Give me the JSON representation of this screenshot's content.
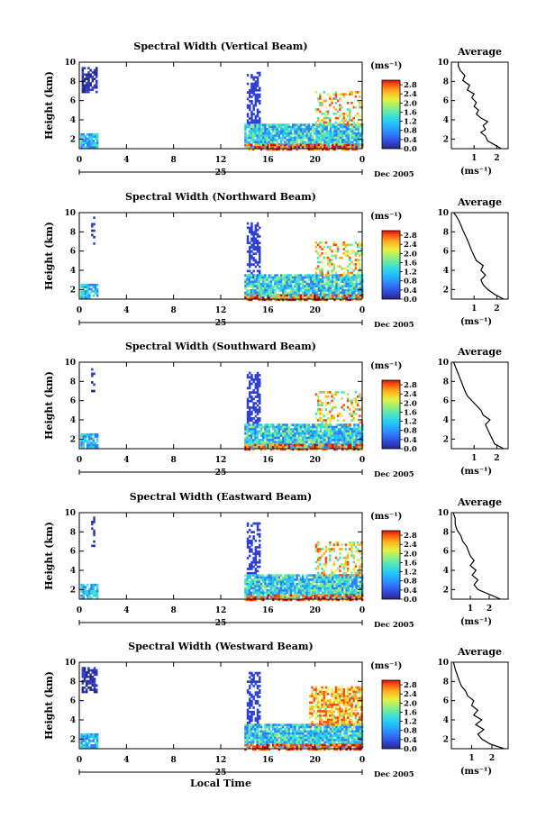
{
  "chart_data": [
    {
      "type": "heatmap",
      "title": "Spectral Width (Vertical Beam)",
      "ylabel": "Height (km)",
      "xlim": [
        0,
        24
      ],
      "ylim": [
        1,
        10
      ],
      "x_ticks": [
        "0",
        "4",
        "8",
        "12",
        "16",
        "20",
        "0"
      ],
      "y_ticks": [
        "2",
        "4",
        "6",
        "8",
        "10"
      ],
      "day_label": "25",
      "date_label": "Dec 2005",
      "colorbar": {
        "unit": "(ms⁻¹)",
        "ticks": [
          "0.0",
          "0.4",
          "0.8",
          "1.2",
          "1.6",
          "2.0",
          "2.4",
          "2.8"
        ],
        "range": [
          0,
          3.0
        ]
      },
      "average": {
        "title": "Average",
        "unit": "(ms⁻¹)",
        "x_ticks": [
          "1",
          "2"
        ],
        "y_ticks": [
          "2",
          "4",
          "6",
          "8",
          "10"
        ],
        "xlim": [
          0,
          2.5
        ],
        "profile": [
          [
            2.2,
            1.0
          ],
          [
            1.9,
            1.4
          ],
          [
            1.6,
            1.8
          ],
          [
            1.5,
            2.3
          ],
          [
            1.3,
            2.7
          ],
          [
            1.5,
            3.0
          ],
          [
            1.4,
            3.4
          ],
          [
            1.6,
            3.8
          ],
          [
            1.3,
            4.2
          ],
          [
            1.1,
            4.6
          ],
          [
            1.2,
            5.0
          ],
          [
            1.0,
            5.4
          ],
          [
            1.1,
            5.8
          ],
          [
            0.9,
            6.3
          ],
          [
            1.0,
            6.7
          ],
          [
            0.7,
            7.1
          ],
          [
            0.8,
            7.6
          ],
          [
            0.5,
            8.1
          ],
          [
            0.6,
            8.6
          ],
          [
            0.4,
            9.1
          ],
          [
            0.3,
            9.6
          ],
          [
            0.3,
            10.0
          ]
        ]
      }
    },
    {
      "type": "heatmap",
      "title": "Spectral Width (Northward Beam)",
      "ylabel": "Height (km)",
      "xlim": [
        0,
        24
      ],
      "ylim": [
        1,
        10
      ],
      "x_ticks": [
        "0",
        "4",
        "8",
        "12",
        "16",
        "20",
        "0"
      ],
      "y_ticks": [
        "2",
        "4",
        "6",
        "8",
        "10"
      ],
      "day_label": "25",
      "date_label": "Dec 2005",
      "colorbar": {
        "unit": "(ms⁻¹)",
        "ticks": [
          "0.0",
          "0.4",
          "0.8",
          "1.2",
          "1.6",
          "2.0",
          "2.4",
          "2.8"
        ],
        "range": [
          0,
          3.0
        ]
      },
      "average": {
        "title": "Average",
        "unit": "(ms⁻¹)",
        "x_ticks": [
          "1",
          "2"
        ],
        "y_ticks": [
          "2",
          "4",
          "6",
          "8",
          "10"
        ],
        "xlim": [
          0,
          2.5
        ],
        "profile": [
          [
            2.3,
            1.0
          ],
          [
            1.9,
            1.5
          ],
          [
            1.6,
            2.0
          ],
          [
            1.4,
            2.5
          ],
          [
            1.3,
            3.0
          ],
          [
            1.5,
            3.5
          ],
          [
            1.3,
            4.0
          ],
          [
            1.4,
            4.5
          ],
          [
            1.1,
            5.0
          ],
          [
            1.0,
            5.5
          ],
          [
            0.9,
            6.0
          ],
          [
            0.8,
            6.6
          ],
          [
            0.7,
            7.2
          ],
          [
            0.6,
            7.7
          ],
          [
            0.5,
            8.2
          ],
          [
            0.4,
            8.8
          ],
          [
            0.3,
            9.3
          ],
          [
            0.2,
            9.7
          ],
          [
            0.1,
            10.0
          ]
        ]
      }
    },
    {
      "type": "heatmap",
      "title": "Spectral Width (Southward Beam)",
      "ylabel": "Height (km)",
      "xlim": [
        0,
        24
      ],
      "ylim": [
        1,
        10
      ],
      "x_ticks": [
        "0",
        "4",
        "8",
        "12",
        "16",
        "20",
        "0"
      ],
      "y_ticks": [
        "2",
        "4",
        "6",
        "8",
        "10"
      ],
      "day_label": "25",
      "date_label": "Dec 2005",
      "colorbar": {
        "unit": "(ms⁻¹)",
        "ticks": [
          "0.0",
          "0.4",
          "0.8",
          "1.2",
          "1.6",
          "2.0",
          "2.4",
          "2.8"
        ],
        "range": [
          0,
          3.0
        ]
      },
      "average": {
        "title": "Average",
        "unit": "(ms⁻¹)",
        "x_ticks": [
          "1",
          "2"
        ],
        "y_ticks": [
          "2",
          "4",
          "6",
          "8",
          "10"
        ],
        "xlim": [
          0,
          2.5
        ],
        "profile": [
          [
            2.3,
            1.0
          ],
          [
            1.9,
            1.5
          ],
          [
            1.8,
            2.0
          ],
          [
            1.7,
            2.5
          ],
          [
            1.6,
            3.0
          ],
          [
            1.5,
            3.5
          ],
          [
            1.7,
            4.0
          ],
          [
            1.4,
            4.5
          ],
          [
            1.3,
            5.0
          ],
          [
            1.1,
            5.5
          ],
          [
            0.9,
            6.0
          ],
          [
            0.7,
            6.5
          ],
          [
            0.6,
            7.0
          ],
          [
            0.5,
            7.6
          ],
          [
            0.4,
            8.2
          ],
          [
            0.3,
            8.8
          ],
          [
            0.2,
            9.4
          ],
          [
            0.1,
            10.0
          ]
        ]
      }
    },
    {
      "type": "heatmap",
      "title": "Spectral Width (Eastward Beam)",
      "ylabel": "Height (km)",
      "xlim": [
        0,
        24
      ],
      "ylim": [
        1,
        10
      ],
      "x_ticks": [
        "0",
        "4",
        "8",
        "12",
        "16",
        "20",
        "0"
      ],
      "y_ticks": [
        "2",
        "4",
        "6",
        "8",
        "10"
      ],
      "day_label": "25",
      "date_label": "Dec 2005",
      "colorbar": {
        "unit": "(ms⁻¹)",
        "ticks": [
          "0.0",
          "0.4",
          "0.8",
          "1.2",
          "1.6",
          "2.0",
          "2.4",
          "2.8"
        ],
        "range": [
          0,
          3.0
        ]
      },
      "average": {
        "title": "Average",
        "unit": "(ms⁻¹)",
        "x_ticks": [
          "1",
          "2"
        ],
        "y_ticks": [
          "2",
          "4",
          "6",
          "8",
          "10"
        ],
        "xlim": [
          0,
          3.0
        ],
        "profile": [
          [
            2.6,
            1.0
          ],
          [
            2.0,
            1.5
          ],
          [
            1.4,
            2.0
          ],
          [
            1.2,
            2.5
          ],
          [
            1.4,
            3.0
          ],
          [
            1.1,
            3.5
          ],
          [
            1.3,
            4.0
          ],
          [
            1.0,
            4.5
          ],
          [
            1.2,
            5.0
          ],
          [
            1.0,
            5.5
          ],
          [
            0.9,
            6.0
          ],
          [
            0.8,
            6.5
          ],
          [
            0.6,
            7.0
          ],
          [
            0.5,
            7.6
          ],
          [
            0.3,
            8.2
          ],
          [
            0.2,
            8.8
          ],
          [
            0.2,
            9.4
          ],
          [
            0.1,
            10.0
          ]
        ]
      }
    },
    {
      "type": "heatmap",
      "title": "Spectral Width (Westward Beam)",
      "ylabel": "Height (km)",
      "xlabel": "Local Time",
      "xlim": [
        0,
        24
      ],
      "ylim": [
        1,
        10
      ],
      "x_ticks": [
        "0",
        "4",
        "8",
        "12",
        "16",
        "20",
        "0"
      ],
      "y_ticks": [
        "2",
        "4",
        "6",
        "8",
        "10"
      ],
      "day_label": "25",
      "date_label": "Dec 2005",
      "colorbar": {
        "unit": "(ms⁻¹)",
        "ticks": [
          "0.0",
          "0.4",
          "0.8",
          "1.2",
          "1.6",
          "2.0",
          "2.4",
          "2.8"
        ],
        "range": [
          0,
          3.0
        ]
      },
      "average": {
        "title": "Average",
        "unit": "(ms⁻¹)",
        "x_ticks": [
          "1",
          "2"
        ],
        "y_ticks": [
          "2",
          "4",
          "6",
          "8",
          "10"
        ],
        "xlim": [
          0,
          2.8
        ],
        "profile": [
          [
            2.6,
            1.0
          ],
          [
            1.9,
            1.5
          ],
          [
            1.5,
            2.0
          ],
          [
            1.3,
            2.5
          ],
          [
            1.6,
            3.0
          ],
          [
            1.2,
            3.5
          ],
          [
            1.5,
            4.0
          ],
          [
            1.1,
            4.5
          ],
          [
            1.3,
            5.0
          ],
          [
            1.0,
            5.5
          ],
          [
            1.1,
            6.0
          ],
          [
            0.8,
            6.5
          ],
          [
            0.7,
            7.0
          ],
          [
            0.5,
            7.5
          ],
          [
            0.4,
            8.0
          ],
          [
            0.3,
            8.6
          ],
          [
            0.2,
            9.2
          ],
          [
            0.1,
            10.0
          ]
        ]
      }
    }
  ]
}
